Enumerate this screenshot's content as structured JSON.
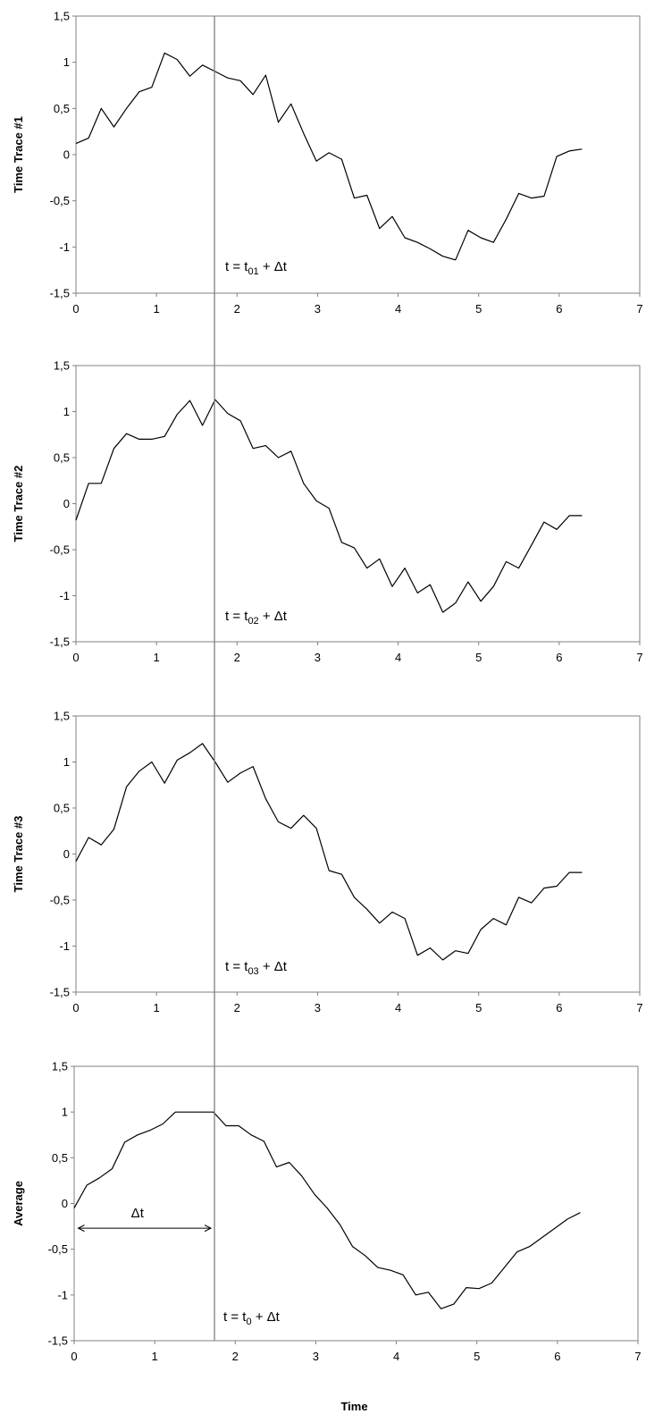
{
  "chart_data": [
    {
      "type": "line",
      "ylabel": "Time Trace #1",
      "xlim": [
        0,
        7
      ],
      "ylim": [
        -1.5,
        1.5
      ],
      "xticks": [
        "0",
        "1",
        "2",
        "3",
        "4",
        "5",
        "6",
        "7"
      ],
      "yticks": [
        "1,5",
        "1",
        "0,5",
        "0",
        "-0,5",
        "-1",
        "-1,5"
      ],
      "annotation": {
        "prefix": "t = t",
        "sub": "01",
        "suffix": " + Δt"
      },
      "x": [
        0,
        0.157,
        0.314,
        0.471,
        0.628,
        0.785,
        0.942,
        1.1,
        1.257,
        1.414,
        1.571,
        1.728,
        1.885,
        2.042,
        2.199,
        2.356,
        2.513,
        2.67,
        2.827,
        2.985,
        3.142,
        3.299,
        3.456,
        3.613,
        3.77,
        3.927,
        4.084,
        4.241,
        4.398,
        4.555,
        4.712,
        4.869,
        5.027,
        5.184,
        5.341,
        5.498,
        5.655,
        5.812,
        5.969,
        6.126,
        6.283
      ],
      "values": [
        0.12,
        0.18,
        0.5,
        0.3,
        0.5,
        0.68,
        0.73,
        1.1,
        1.03,
        0.85,
        0.97,
        0.9,
        0.83,
        0.8,
        0.65,
        0.86,
        0.35,
        0.55,
        0.23,
        -0.07,
        0.02,
        -0.05,
        -0.47,
        -0.44,
        -0.8,
        -0.67,
        -0.9,
        -0.95,
        -1.02,
        -1.1,
        -1.14,
        -0.82,
        -0.9,
        -0.95,
        -0.7,
        -0.42,
        -0.47,
        -0.45,
        -0.02,
        0.04,
        0.06
      ]
    },
    {
      "type": "line",
      "ylabel": "Time Trace #2",
      "xlim": [
        0,
        7
      ],
      "ylim": [
        -1.5,
        1.5
      ],
      "xticks": [
        "0",
        "1",
        "2",
        "3",
        "4",
        "5",
        "6",
        "7"
      ],
      "yticks": [
        "1,5",
        "1",
        "0,5",
        "0",
        "-0,5",
        "-1",
        "-1,5"
      ],
      "annotation": {
        "prefix": "t = t",
        "sub": "02",
        "suffix": " + Δt"
      },
      "x": [
        0,
        0.157,
        0.314,
        0.471,
        0.628,
        0.785,
        0.942,
        1.1,
        1.257,
        1.414,
        1.571,
        1.728,
        1.885,
        2.042,
        2.199,
        2.356,
        2.513,
        2.67,
        2.827,
        2.985,
        3.142,
        3.299,
        3.456,
        3.613,
        3.77,
        3.927,
        4.084,
        4.241,
        4.398,
        4.555,
        4.712,
        4.869,
        5.027,
        5.184,
        5.341,
        5.498,
        5.655,
        5.812,
        5.969,
        6.126,
        6.283
      ],
      "values": [
        -0.18,
        0.22,
        0.22,
        0.6,
        0.76,
        0.7,
        0.7,
        0.73,
        0.97,
        1.12,
        0.85,
        1.13,
        0.98,
        0.9,
        0.6,
        0.63,
        0.5,
        0.57,
        0.22,
        0.03,
        -0.05,
        -0.42,
        -0.48,
        -0.7,
        -0.6,
        -0.9,
        -0.7,
        -0.97,
        -0.88,
        -1.18,
        -1.08,
        -0.85,
        -1.06,
        -0.9,
        -0.63,
        -0.7,
        -0.45,
        -0.2,
        -0.28,
        -0.13,
        -0.13
      ]
    },
    {
      "type": "line",
      "ylabel": "Time Trace #3",
      "xlim": [
        0,
        7
      ],
      "ylim": [
        -1.5,
        1.5
      ],
      "xticks": [
        "0",
        "1",
        "2",
        "3",
        "4",
        "5",
        "6",
        "7"
      ],
      "yticks": [
        "1,5",
        "1",
        "0,5",
        "0",
        "-0,5",
        "-1",
        "-1,5"
      ],
      "annotation": {
        "prefix": "t = t",
        "sub": "03",
        "suffix": " + Δt"
      },
      "x": [
        0,
        0.157,
        0.314,
        0.471,
        0.628,
        0.785,
        0.942,
        1.1,
        1.257,
        1.414,
        1.571,
        1.728,
        1.885,
        2.042,
        2.199,
        2.356,
        2.513,
        2.67,
        2.827,
        2.985,
        3.142,
        3.299,
        3.456,
        3.613,
        3.77,
        3.927,
        4.084,
        4.241,
        4.398,
        4.555,
        4.712,
        4.869,
        5.027,
        5.184,
        5.341,
        5.498,
        5.655,
        5.812,
        5.969,
        6.126,
        6.283
      ],
      "values": [
        -0.08,
        0.18,
        0.1,
        0.27,
        0.73,
        0.9,
        1.0,
        0.77,
        1.02,
        1.1,
        1.2,
        1.0,
        0.78,
        0.88,
        0.95,
        0.6,
        0.35,
        0.28,
        0.42,
        0.28,
        -0.18,
        -0.22,
        -0.47,
        -0.6,
        -0.75,
        -0.63,
        -0.7,
        -1.1,
        -1.02,
        -1.15,
        -1.05,
        -1.08,
        -0.82,
        -0.7,
        -0.77,
        -0.47,
        -0.53,
        -0.37,
        -0.35,
        -0.2,
        -0.2
      ]
    },
    {
      "type": "line",
      "ylabel": "Average",
      "xlabel": "Time",
      "xlim": [
        0,
        7
      ],
      "ylim": [
        -1.5,
        1.5
      ],
      "xticks": [
        "0",
        "1",
        "2",
        "3",
        "4",
        "5",
        "6",
        "7"
      ],
      "yticks": [
        "1,5",
        "1",
        "0,5",
        "0",
        "-0,5",
        "-1",
        "-1,5"
      ],
      "annotation": {
        "prefix": "t = t",
        "sub": "0",
        "suffix": " + Δt"
      },
      "arrow_label": "Δt",
      "x": [
        0,
        0.157,
        0.314,
        0.471,
        0.628,
        0.785,
        0.942,
        1.1,
        1.257,
        1.414,
        1.571,
        1.728,
        1.885,
        2.042,
        2.199,
        2.356,
        2.513,
        2.67,
        2.827,
        2.985,
        3.142,
        3.299,
        3.456,
        3.613,
        3.77,
        3.927,
        4.084,
        4.241,
        4.398,
        4.555,
        4.712,
        4.869,
        5.027,
        5.184,
        5.341,
        5.498,
        5.655,
        5.812,
        5.969,
        6.126,
        6.283
      ],
      "values": [
        -0.05,
        0.2,
        0.28,
        0.38,
        0.67,
        0.75,
        0.8,
        0.87,
        1.0,
        1.0,
        1.0,
        1.0,
        0.85,
        0.85,
        0.75,
        0.68,
        0.4,
        0.45,
        0.3,
        0.1,
        -0.05,
        -0.23,
        -0.47,
        -0.57,
        -0.7,
        -0.73,
        -0.78,
        -1.0,
        -0.97,
        -1.15,
        -1.1,
        -0.92,
        -0.93,
        -0.87,
        -0.7,
        -0.53,
        -0.47,
        -0.37,
        -0.27,
        -0.17,
        -0.1
      ]
    }
  ],
  "cursor_x": 1.72,
  "colors": {
    "line": "#000000",
    "frame": "#808080",
    "cursor": "#808080"
  }
}
